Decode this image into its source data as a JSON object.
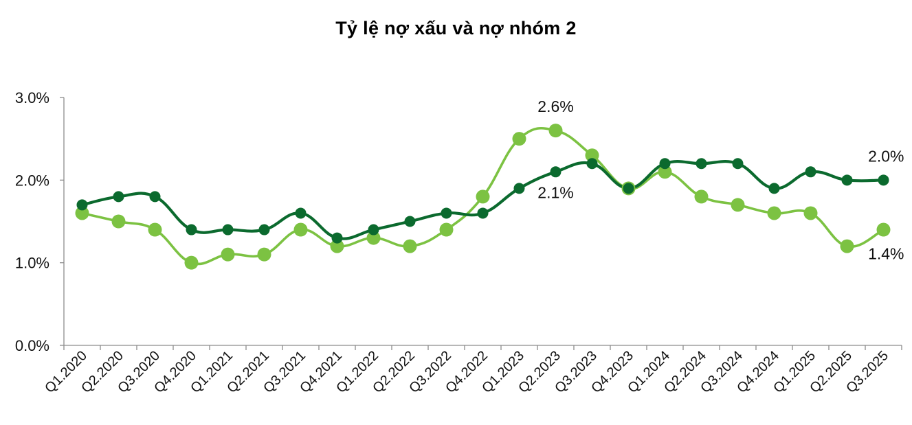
{
  "chart_data": {
    "type": "line",
    "title": "Tỷ lệ nợ xấu và nợ nhóm 2",
    "xlabel": "",
    "ylabel": "",
    "categories": [
      "Q1.2020",
      "Q2.2020",
      "Q3.2020",
      "Q4.2020",
      "Q1.2021",
      "Q2.2021",
      "Q3.2021",
      "Q4.2021",
      "Q1.2022",
      "Q2.2022",
      "Q3.2022",
      "Q4.2022",
      "Q1.2023",
      "Q2.2023",
      "Q3.2023",
      "Q4.2023",
      "Q1.2024",
      "Q2.2024",
      "Q3.2024",
      "Q4.2024",
      "Q1.2025",
      "Q2.2025",
      "Q3.2025"
    ],
    "ylim": [
      0,
      3.0
    ],
    "y_ticks": [
      0.0,
      1.0,
      2.0,
      3.0
    ],
    "y_tick_labels": [
      "0.0%",
      "1.0%",
      "2.0%",
      "3.0%"
    ],
    "y_format": "percent",
    "grid": false,
    "legend": "none",
    "series": [
      {
        "color": "#0b6a2e",
        "values": [
          1.7,
          1.8,
          1.8,
          1.4,
          1.4,
          1.4,
          1.6,
          1.3,
          1.4,
          1.5,
          1.6,
          1.6,
          1.9,
          2.1,
          2.2,
          1.9,
          2.2,
          2.2,
          2.2,
          1.9,
          2.1,
          2.0,
          2.0
        ]
      },
      {
        "color": "#7cc242",
        "values": [
          1.6,
          1.5,
          1.4,
          1.0,
          1.1,
          1.1,
          1.4,
          1.2,
          1.3,
          1.2,
          1.4,
          1.8,
          2.5,
          2.6,
          2.3,
          1.9,
          2.1,
          1.8,
          1.7,
          1.6,
          1.6,
          1.2,
          1.4
        ]
      }
    ],
    "annotations": [
      {
        "text": "2.6%",
        "series": 1,
        "index": 13,
        "placement": "above"
      },
      {
        "text": "2.1%",
        "series": 0,
        "index": 13,
        "placement": "below"
      },
      {
        "text": "2.0%",
        "series": 0,
        "index": 22,
        "placement": "above"
      },
      {
        "text": "1.4%",
        "series": 1,
        "index": 22,
        "placement": "below"
      }
    ]
  }
}
